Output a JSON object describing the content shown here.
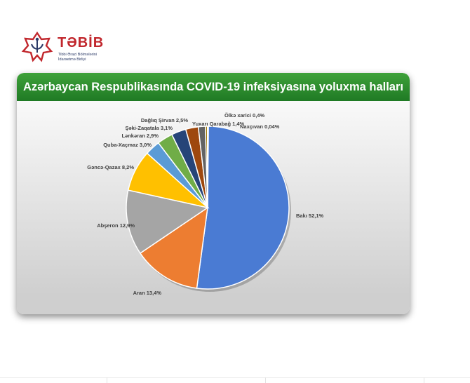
{
  "logo": {
    "title": "TƏBİB",
    "subtitle_line1": "Tibbi Ərazi Bölmələrini",
    "subtitle_line2": "İdarəetmə Birliyi"
  },
  "colors": {
    "banner": "#2e8b31",
    "brand_red": "#c1272d",
    "brand_blue": "#2b3a67"
  },
  "chart_data": {
    "type": "pie",
    "title": "Azərbaycan Respublikasında COVID-19 infeksiyasına yoluxma halları",
    "start_angle_deg": 0,
    "direction": "clockwise",
    "slices": [
      {
        "label": "Bakı 52,1%",
        "value": 52.1,
        "color": "#4a7bd3"
      },
      {
        "label": "Aran 13,4%",
        "value": 13.4,
        "color": "#ed7d31"
      },
      {
        "label": "Abşeron 12,9%",
        "value": 12.9,
        "color": "#a5a5a5"
      },
      {
        "label": "Gəncə-Qazax 8,2%",
        "value": 8.2,
        "color": "#ffc000"
      },
      {
        "label": "Quba-Xaçmaz 3,0%",
        "value": 3.0,
        "color": "#5b9bd5"
      },
      {
        "label": "Şəki-Zaqatala 3,1%",
        "value": 3.1,
        "color": "#70ad47"
      },
      {
        "label": "Lənkəran 2,9%",
        "value": 2.9,
        "color": "#264478"
      },
      {
        "label": "Dağlıq Şirvan 2,5%",
        "value": 2.5,
        "color": "#9e480e"
      },
      {
        "label": "Yuxarı Qarabağ 1,4%",
        "value": 1.4,
        "color": "#636363"
      },
      {
        "label": "Ölkə xarici 0,4%",
        "value": 0.4,
        "color": "#997300"
      },
      {
        "label": "Naxçıvan 0,04%",
        "value": 0.04,
        "color": "#44546a"
      }
    ]
  }
}
